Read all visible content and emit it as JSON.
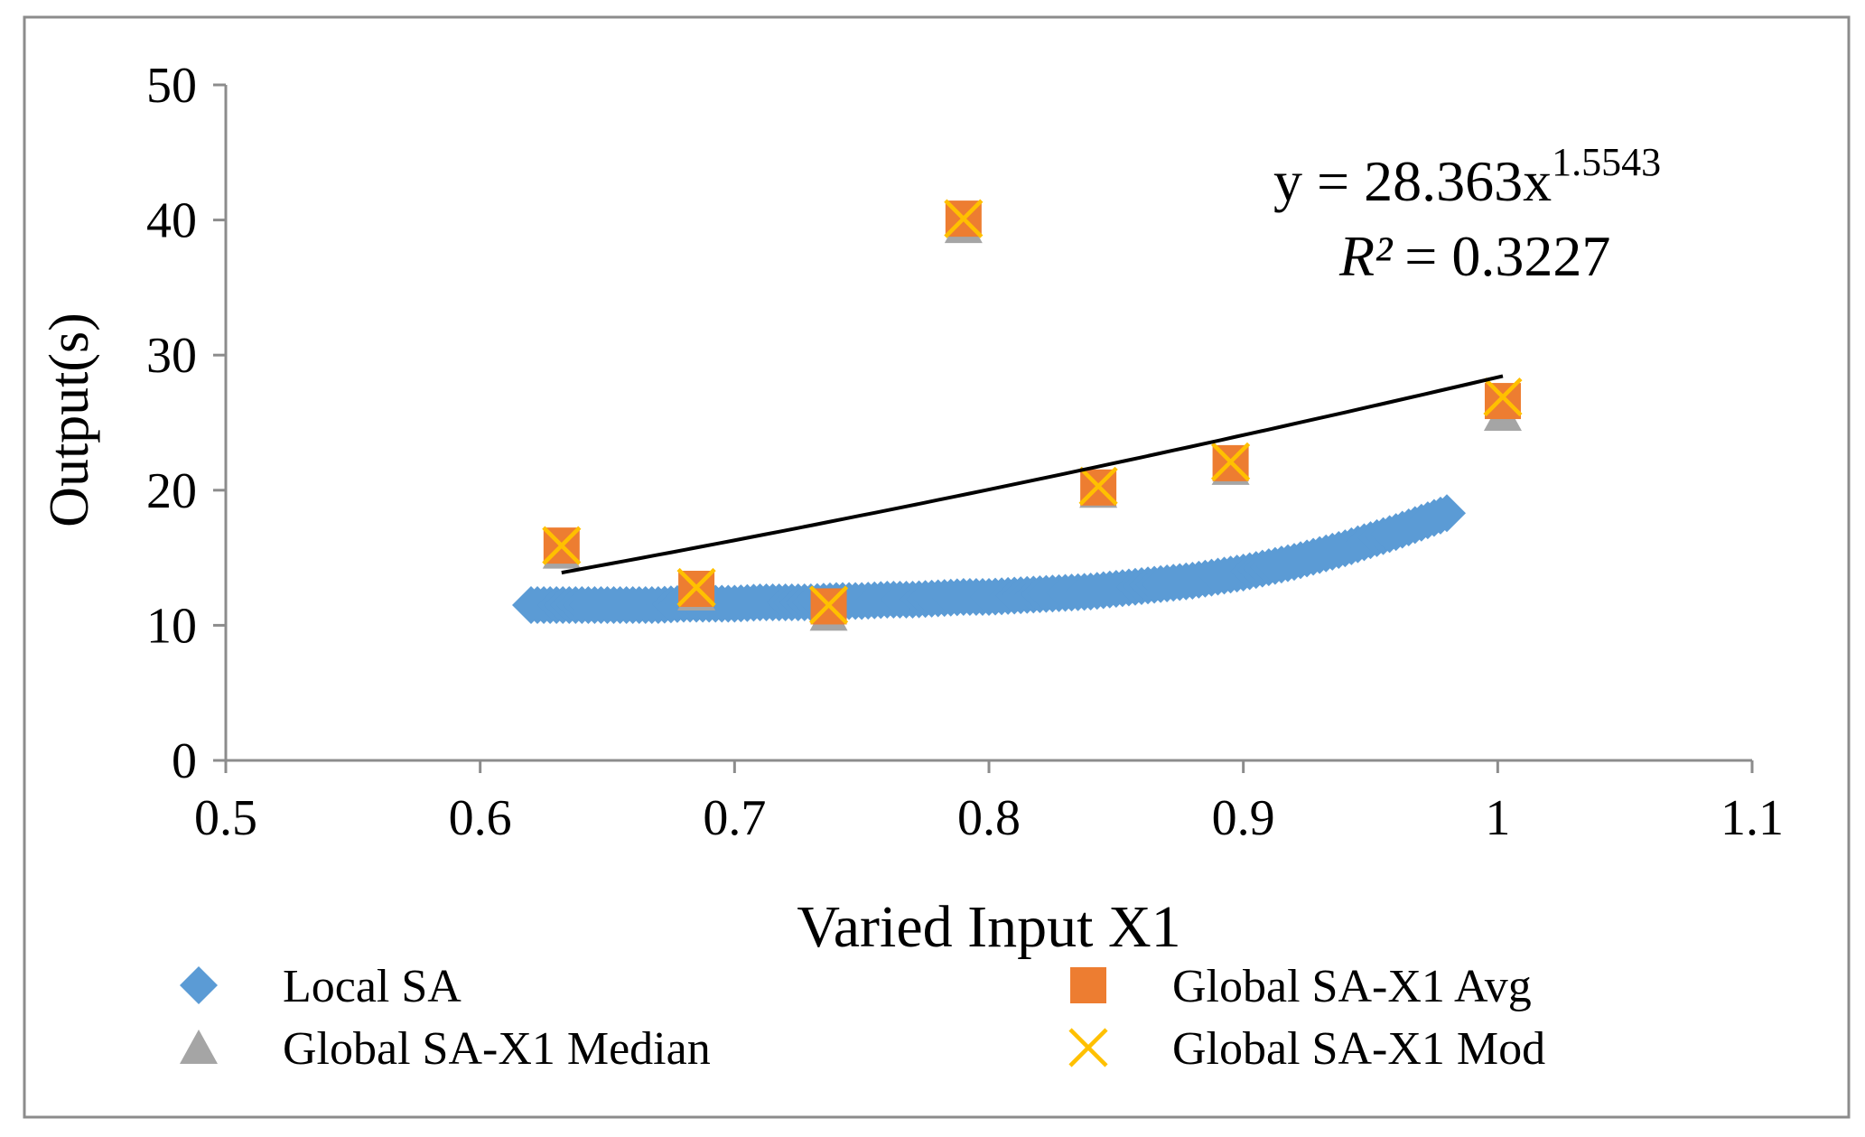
{
  "chart_data": {
    "type": "scatter",
    "xlabel": "Varied Input X1",
    "ylabel": "Output(s)",
    "xlim": [
      0.5,
      1.1
    ],
    "ylim": [
      0,
      50
    ],
    "x_ticks": [
      "0.5",
      "0.6",
      "0.7",
      "0.8",
      "0.9",
      "1",
      "1.1"
    ],
    "y_ticks": [
      "0",
      "10",
      "20",
      "30",
      "40",
      "50"
    ],
    "x_tick_values": [
      0.5,
      0.6,
      0.7,
      0.8,
      0.9,
      1.0,
      1.1
    ],
    "y_tick_values": [
      0,
      10,
      20,
      30,
      40,
      50
    ],
    "legend_position": "bottom",
    "series": [
      {
        "name": "Local SA",
        "marker": "diamond",
        "color": "#5B9BD5",
        "x": [
          0.62,
          0.63,
          0.64,
          0.65,
          0.66,
          0.67,
          0.68,
          0.69,
          0.7,
          0.71,
          0.72,
          0.73,
          0.74,
          0.75,
          0.76,
          0.77,
          0.78,
          0.79,
          0.8,
          0.81,
          0.82,
          0.83,
          0.84,
          0.85,
          0.86,
          0.87,
          0.88,
          0.89,
          0.9,
          0.91,
          0.92,
          0.93,
          0.94,
          0.95,
          0.96,
          0.97,
          0.98
        ],
        "y": [
          11.5,
          11.5,
          11.5,
          11.5,
          11.5,
          11.5,
          11.6,
          11.6,
          11.6,
          11.7,
          11.7,
          11.7,
          11.8,
          11.8,
          11.9,
          11.9,
          12.0,
          12.1,
          12.1,
          12.2,
          12.3,
          12.4,
          12.5,
          12.7,
          12.9,
          13.1,
          13.3,
          13.6,
          13.9,
          14.3,
          14.7,
          15.2,
          15.7,
          16.3,
          16.9,
          17.6,
          18.3
        ]
      },
      {
        "name": "Global SA-X1 Avg",
        "marker": "square",
        "color": "#ED7D31",
        "x": [
          0.632,
          0.685,
          0.737,
          0.79,
          0.843,
          0.895,
          1.002
        ],
        "y": [
          15.9,
          12.7,
          11.4,
          40.1,
          20.2,
          22.0,
          26.6
        ]
      },
      {
        "name": "Global SA-X1 Median",
        "marker": "triangle",
        "color": "#A5A5A5",
        "x": [
          0.632,
          0.685,
          0.737,
          0.79,
          0.843,
          0.895,
          1.002
        ],
        "y": [
          15.4,
          12.3,
          10.8,
          39.5,
          19.9,
          21.6,
          25.6
        ]
      },
      {
        "name": "Global SA-X1 Mod",
        "marker": "x",
        "color": "#FFC000",
        "x": [
          0.632,
          0.685,
          0.737,
          0.79,
          0.843,
          0.895,
          1.002
        ],
        "y": [
          15.9,
          12.8,
          11.5,
          40.1,
          20.3,
          22.1,
          26.9
        ]
      }
    ],
    "trendline": {
      "type": "power",
      "coefficient": 28.363,
      "exponent": 1.5543,
      "x_range": [
        0.632,
        1.002
      ],
      "color": "#000000",
      "equation_base": "y = 28.363x",
      "equation_exponent": "1.5543",
      "r2_label": "R²",
      "r2_value": "= 0.3227"
    }
  }
}
